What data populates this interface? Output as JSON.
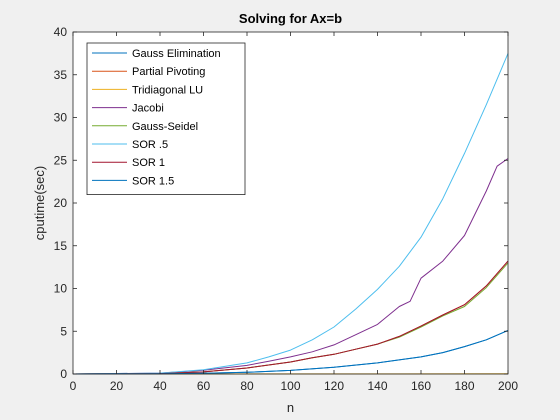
{
  "chart_data": {
    "type": "line",
    "title": "Solving for Ax=b",
    "xlabel": "n",
    "ylabel": "cputime(sec)",
    "xlim": [
      0,
      200
    ],
    "ylim": [
      0,
      40
    ],
    "xticks": [
      "0",
      "20",
      "40",
      "60",
      "80",
      "100",
      "120",
      "140",
      "160",
      "180",
      "200"
    ],
    "yticks": [
      "0",
      "5",
      "10",
      "15",
      "20",
      "25",
      "30",
      "35",
      "40"
    ],
    "grid": false,
    "legend_position": "top-left",
    "series": [
      {
        "name": "Gauss Elimination",
        "color": "#0072bd",
        "x": [
          0,
          40,
          60,
          80,
          100,
          120,
          140,
          160,
          170,
          180,
          190,
          200
        ],
        "y": [
          0,
          0.03,
          0.08,
          0.2,
          0.42,
          0.8,
          1.3,
          2.0,
          2.5,
          3.2,
          4.0,
          5.1
        ]
      },
      {
        "name": "Partial Pivoting",
        "color": "#d95319",
        "x": [
          0,
          40,
          60,
          80,
          100,
          110,
          120,
          130,
          140,
          150,
          160,
          170,
          180,
          190,
          200
        ],
        "y": [
          0,
          0.05,
          0.25,
          0.7,
          1.4,
          1.9,
          2.3,
          2.9,
          3.5,
          4.4,
          5.6,
          6.9,
          8.1,
          10.3,
          13.2
        ]
      },
      {
        "name": "Tridiagonal LU",
        "color": "#edb120",
        "x": [
          0,
          50,
          100,
          150,
          200
        ],
        "y": [
          0,
          0,
          0.01,
          0.01,
          0.02
        ]
      },
      {
        "name": "Jacobi",
        "color": "#7e2f8e",
        "x": [
          0,
          40,
          60,
          80,
          90,
          100,
          110,
          120,
          130,
          140,
          150,
          155,
          160,
          170,
          180,
          190,
          195,
          200
        ],
        "y": [
          0,
          0.1,
          0.45,
          1.0,
          1.5,
          2.0,
          2.6,
          3.4,
          4.6,
          5.8,
          7.9,
          8.5,
          11.2,
          13.2,
          16.2,
          21.4,
          24.3,
          25.2
        ]
      },
      {
        "name": "Gauss-Seidel",
        "color": "#77ac30",
        "x": [
          0,
          40,
          60,
          80,
          100,
          110,
          120,
          130,
          140,
          150,
          160,
          170,
          180,
          190,
          200
        ],
        "y": [
          0,
          0.05,
          0.25,
          0.7,
          1.4,
          1.9,
          2.3,
          2.9,
          3.5,
          4.3,
          5.5,
          6.8,
          7.9,
          10.1,
          13.0
        ]
      },
      {
        "name": "SOR .5",
        "color": "#4dbeee",
        "x": [
          0,
          40,
          60,
          80,
          90,
          100,
          110,
          120,
          130,
          140,
          150,
          160,
          170,
          180,
          190,
          200
        ],
        "y": [
          0,
          0.1,
          0.5,
          1.3,
          2.0,
          2.8,
          4.0,
          5.5,
          7.6,
          9.9,
          12.6,
          16.0,
          20.5,
          25.8,
          31.5,
          37.5
        ]
      },
      {
        "name": "SOR 1",
        "color": "#a2142f",
        "x": [
          0,
          40,
          60,
          80,
          100,
          110,
          120,
          130,
          140,
          150,
          160,
          170,
          180,
          190,
          200
        ],
        "y": [
          0,
          0.05,
          0.25,
          0.7,
          1.4,
          1.9,
          2.3,
          2.9,
          3.5,
          4.4,
          5.6,
          6.9,
          8.1,
          10.3,
          13.2
        ]
      },
      {
        "name": "SOR 1.5",
        "color": "#0072bd",
        "x": [
          0,
          40,
          60,
          80,
          100,
          120,
          140,
          160,
          170,
          180,
          190,
          200
        ],
        "y": [
          0,
          0.03,
          0.08,
          0.2,
          0.42,
          0.8,
          1.3,
          2.0,
          2.5,
          3.2,
          4.0,
          5.1
        ]
      }
    ]
  }
}
